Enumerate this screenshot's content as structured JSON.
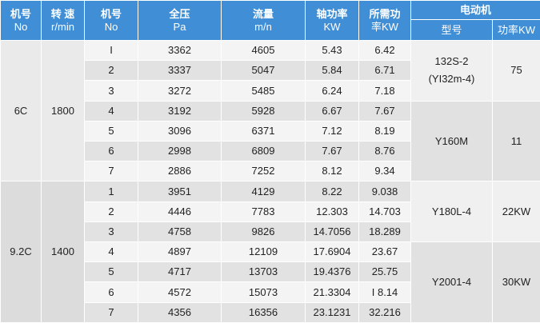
{
  "header": {
    "col1": {
      "top": "机号",
      "bottom": "No"
    },
    "col2": {
      "top": "转 速",
      "bottom": "r/min"
    },
    "col3": {
      "top": "机号",
      "bottom": "No"
    },
    "col4": {
      "top": "全压",
      "bottom": "Pa"
    },
    "col5": {
      "top": "流量",
      "bottom": "m/n"
    },
    "col6": {
      "top": "轴功率",
      "bottom": "KW"
    },
    "col7": {
      "top": "所需功",
      "bottom": "率KW"
    },
    "motor": {
      "title": "电动机",
      "model": "型号",
      "power": "功率KW"
    }
  },
  "groups": [
    {
      "no": "6C",
      "speed": "1800"
    },
    {
      "no": "9.2C",
      "speed": "1400"
    }
  ],
  "rows": [
    {
      "no": "I",
      "pressure": "3362",
      "flow": "4605",
      "shaft": "5.43",
      "required": "6.42"
    },
    {
      "no": "2",
      "pressure": "3337",
      "flow": "5047",
      "shaft": "5.84",
      "required": "6.71"
    },
    {
      "no": "3",
      "pressure": "3272",
      "flow": "5485",
      "shaft": "6.24",
      "required": "7.18"
    },
    {
      "no": "4",
      "pressure": "3192",
      "flow": "5928",
      "shaft": "6.67",
      "required": "7.67"
    },
    {
      "no": "5",
      "pressure": "3096",
      "flow": "6371",
      "shaft": "7.12",
      "required": "8.19"
    },
    {
      "no": "6",
      "pressure": "2998",
      "flow": "6809",
      "shaft": "7.67",
      "required": "8.76"
    },
    {
      "no": "7",
      "pressure": "2886",
      "flow": "7252",
      "shaft": "8.12",
      "required": "9.34"
    },
    {
      "no": "1",
      "pressure": "3951",
      "flow": "4129",
      "shaft": "8.22",
      "required": "9.038"
    },
    {
      "no": "2",
      "pressure": "4446",
      "flow": "7783",
      "shaft": "12.303",
      "required": "14.703"
    },
    {
      "no": "3",
      "pressure": "4758",
      "flow": "9826",
      "shaft": "14.7056",
      "required": "18.289"
    },
    {
      "no": "4",
      "pressure": "4897",
      "flow": "12109",
      "shaft": "17.6904",
      "required": "23.67"
    },
    {
      "no": "5",
      "pressure": "4717",
      "flow": "13703",
      "shaft": "19.4376",
      "required": "25.75"
    },
    {
      "no": "6",
      "pressure": "4572",
      "flow": "15073",
      "shaft": "21.3304",
      "required": "I 8.14"
    },
    {
      "no": "7",
      "pressure": "4356",
      "flow": "16356",
      "shaft": "23.1231",
      "required": "32.216"
    }
  ],
  "motors": [
    {
      "model_line1": "132S-2",
      "model_line2": "(YI32m-4)",
      "power": "75"
    },
    {
      "model": "Y160M",
      "power": "11"
    },
    {
      "model": "Y180L-4",
      "power": "22KW"
    },
    {
      "model": "Y2001-4",
      "power": "30KW"
    }
  ],
  "colors": {
    "header": "#3f8ed6",
    "row_light": "#f4f4f4",
    "row_dark": "#e2e2e2"
  }
}
